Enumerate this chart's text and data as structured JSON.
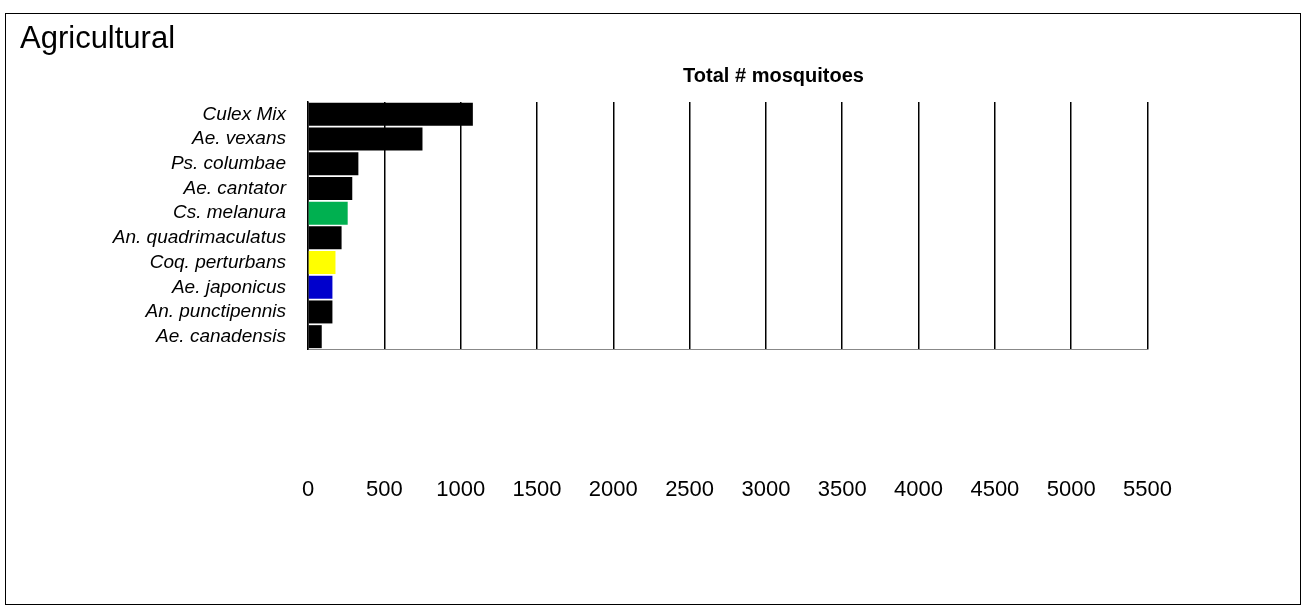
{
  "chart_data": {
    "type": "bar",
    "orientation": "horizontal",
    "title": "Agricultural",
    "xlabel": "Total # mosquitoes",
    "categories": [
      "Culex Mix",
      "Ae. vexans",
      "Ps. columbae",
      "Ae. cantator",
      "Cs. melanura",
      "An. quadrimaculatus",
      "Coq. perturbans",
      "Ae. japonicus",
      "An. punctipennis",
      "Ae. canadensis"
    ],
    "values": [
      1080,
      750,
      330,
      290,
      260,
      220,
      180,
      160,
      160,
      90
    ],
    "colors": [
      "#000000",
      "#000000",
      "#000000",
      "#000000",
      "#00b050",
      "#000000",
      "#ffff00",
      "#0000cc",
      "#000000",
      "#000000"
    ],
    "xlim": [
      0,
      5500
    ],
    "xticks": [
      0,
      500,
      1000,
      1500,
      2000,
      2500,
      3000,
      3500,
      4000,
      4500,
      5000,
      5500
    ],
    "grid": "x"
  }
}
